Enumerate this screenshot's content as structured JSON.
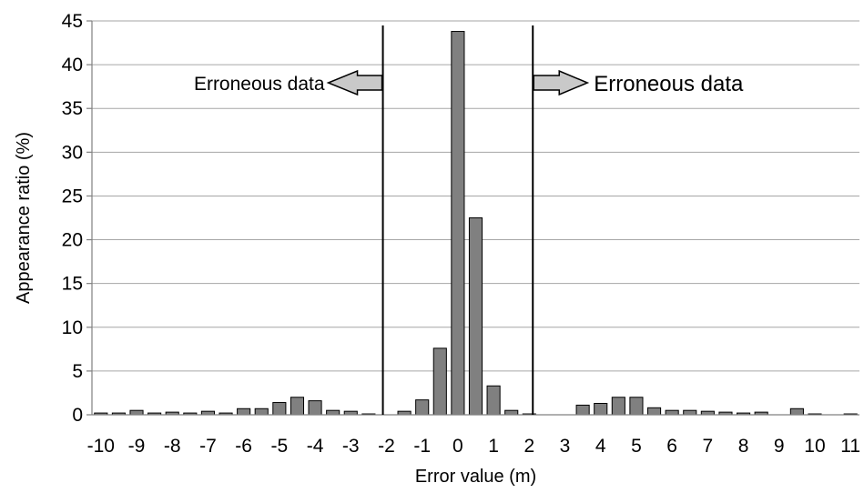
{
  "chart_data": {
    "type": "bar",
    "title": "",
    "xlabel": "Error value (m)",
    "ylabel": "Appearance ratio (%)",
    "ylim": [
      0,
      45
    ],
    "xlim": [
      -10.25,
      11.25
    ],
    "bin_width": 0.5,
    "yticks": [
      "0",
      "5",
      "10",
      "15",
      "20",
      "25",
      "30",
      "35",
      "40",
      "45"
    ],
    "xticks": [
      "-10",
      "-9",
      "-8",
      "-7",
      "-6",
      "-5",
      "-4",
      "-3",
      "-2",
      "-1",
      "0",
      "1",
      "2",
      "3",
      "4",
      "5",
      "6",
      "7",
      "8",
      "9",
      "10",
      "11"
    ],
    "grid": {
      "horizontal": true,
      "vertical": false
    },
    "bar_color": "#808080",
    "x": [
      -10,
      -9.5,
      -9,
      -8.5,
      -8,
      -7.5,
      -7,
      -6.5,
      -6,
      -5.5,
      -5,
      -4.5,
      -4,
      -3.5,
      -3,
      -2.5,
      -2,
      -1.5,
      -1,
      -0.5,
      0,
      0.5,
      1,
      1.5,
      2,
      2.5,
      3,
      3.5,
      4,
      4.5,
      5,
      5.5,
      6,
      6.5,
      7,
      7.5,
      8,
      8.5,
      9,
      9.5,
      10,
      10.5,
      11
    ],
    "values": [
      0.2,
      0.2,
      0.5,
      0.2,
      0.3,
      0.2,
      0.4,
      0.2,
      0.7,
      0.7,
      1.4,
      2.0,
      1.6,
      0.5,
      0.4,
      0.1,
      0,
      0.4,
      1.7,
      7.6,
      43.8,
      22.5,
      3.3,
      0.5,
      0.1,
      0,
      0,
      1.1,
      1.3,
      2.0,
      2.0,
      0.8,
      0.5,
      0.5,
      0.4,
      0.3,
      0.2,
      0.3,
      0,
      0.7,
      0.1,
      0,
      0.1
    ],
    "thresholds": [
      -2.1,
      2.1
    ],
    "annotations": [
      {
        "text": "Erroneous data",
        "direction": "left"
      },
      {
        "text": "Erroneous data",
        "direction": "right"
      }
    ]
  }
}
